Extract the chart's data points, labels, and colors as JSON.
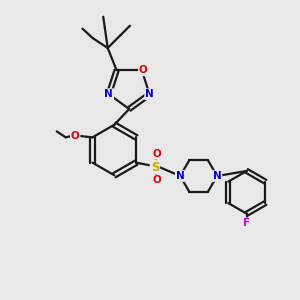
{
  "background_color": "#e8e8e8",
  "bond_color": "#1a1a1a",
  "atom_colors": {
    "N": "#0000cc",
    "O": "#dd0000",
    "S": "#ccaa00",
    "F": "#cc00cc",
    "C": "#1a1a1a"
  },
  "figsize": [
    3.0,
    3.0
  ],
  "dpi": 100,
  "lw": 1.6
}
